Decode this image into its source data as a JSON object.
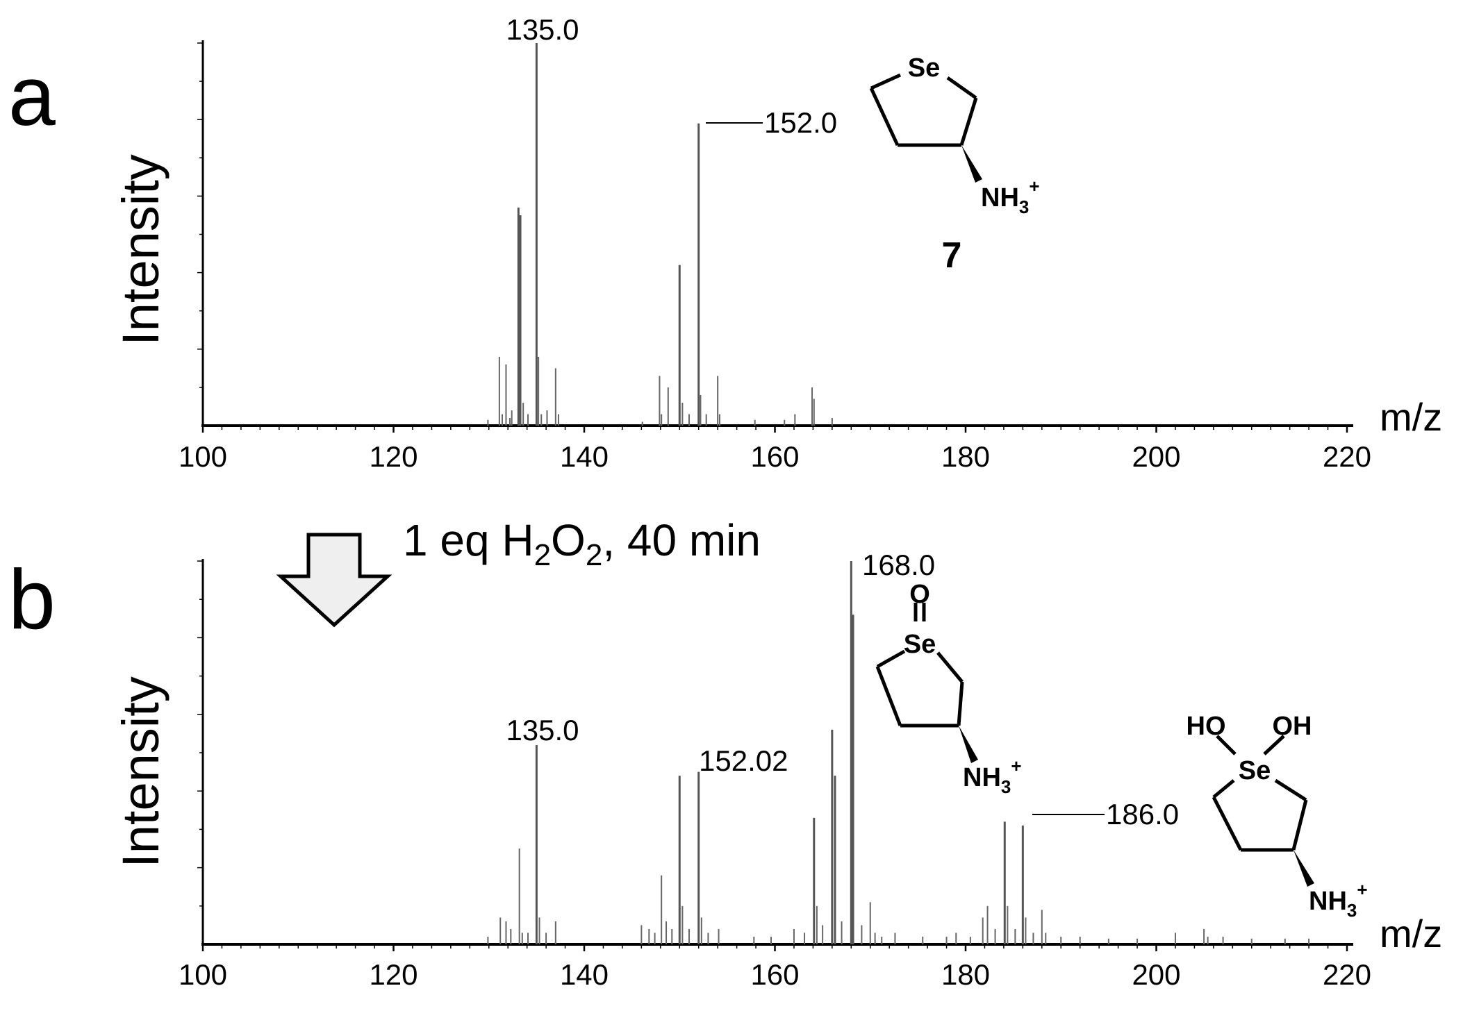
{
  "chart_data": [
    {
      "type": "bar",
      "panel_label": "a",
      "ylabel": "Intensity",
      "xlabel": "m/z",
      "xlim": [
        100,
        220
      ],
      "x_ticks": [
        "100",
        "120",
        "140",
        "160",
        "180",
        "200",
        "220"
      ],
      "ylim": [
        0,
        100
      ],
      "peaks": [
        {
          "mz": 129.9,
          "i": 1.5
        },
        {
          "mz": 131.1,
          "i": 18
        },
        {
          "mz": 131.4,
          "i": 3
        },
        {
          "mz": 131.8,
          "i": 16
        },
        {
          "mz": 132.2,
          "i": 2
        },
        {
          "mz": 132.4,
          "i": 4
        },
        {
          "mz": 133.1,
          "i": 57
        },
        {
          "mz": 133.3,
          "i": 55
        },
        {
          "mz": 133.6,
          "i": 6
        },
        {
          "mz": 134.1,
          "i": 3
        },
        {
          "mz": 135.0,
          "i": 100
        },
        {
          "mz": 135.2,
          "i": 18
        },
        {
          "mz": 135.5,
          "i": 3
        },
        {
          "mz": 136.1,
          "i": 4
        },
        {
          "mz": 137.0,
          "i": 15
        },
        {
          "mz": 137.3,
          "i": 3
        },
        {
          "mz": 146.1,
          "i": 1
        },
        {
          "mz": 147.9,
          "i": 13
        },
        {
          "mz": 148.1,
          "i": 3
        },
        {
          "mz": 148.8,
          "i": 10
        },
        {
          "mz": 150.0,
          "i": 42
        },
        {
          "mz": 150.3,
          "i": 6
        },
        {
          "mz": 151.0,
          "i": 3
        },
        {
          "mz": 152.0,
          "i": 79
        },
        {
          "mz": 152.2,
          "i": 8
        },
        {
          "mz": 152.8,
          "i": 3
        },
        {
          "mz": 154.0,
          "i": 13
        },
        {
          "mz": 154.2,
          "i": 3
        },
        {
          "mz": 157.9,
          "i": 1.5
        },
        {
          "mz": 161.0,
          "i": 1.5
        },
        {
          "mz": 162.1,
          "i": 3
        },
        {
          "mz": 163.9,
          "i": 10
        },
        {
          "mz": 164.1,
          "i": 7
        },
        {
          "mz": 166.0,
          "i": 2
        }
      ],
      "peak_labels": [
        {
          "text": "135.0",
          "mz": 135.0
        },
        {
          "text": "152.0",
          "mz": 152.0
        }
      ],
      "structure": {
        "atom_top": "Se",
        "substituent": "NH",
        "sub": "3",
        "sup": "+",
        "compound_number": "7"
      }
    },
    {
      "type": "bar",
      "panel_label": "b",
      "ylabel": "Intensity",
      "xlabel": "m/z",
      "xlim": [
        100,
        220
      ],
      "x_ticks": [
        "100",
        "120",
        "140",
        "160",
        "180",
        "200",
        "220"
      ],
      "ylim": [
        0,
        100
      ],
      "reaction": {
        "prefix": "1 eq H",
        "sub1": "2",
        "mid": "O",
        "sub2": "2",
        "suffix": ", 40 min"
      },
      "peaks": [
        {
          "mz": 129.9,
          "i": 2
        },
        {
          "mz": 131.2,
          "i": 7
        },
        {
          "mz": 131.8,
          "i": 6
        },
        {
          "mz": 132.3,
          "i": 4
        },
        {
          "mz": 133.2,
          "i": 25
        },
        {
          "mz": 133.5,
          "i": 3
        },
        {
          "mz": 134.1,
          "i": 3
        },
        {
          "mz": 135.0,
          "i": 52
        },
        {
          "mz": 135.3,
          "i": 7
        },
        {
          "mz": 136.0,
          "i": 3
        },
        {
          "mz": 137.0,
          "i": 6
        },
        {
          "mz": 146.0,
          "i": 5
        },
        {
          "mz": 146.8,
          "i": 4
        },
        {
          "mz": 147.4,
          "i": 3
        },
        {
          "mz": 148.1,
          "i": 18
        },
        {
          "mz": 148.6,
          "i": 6
        },
        {
          "mz": 149.2,
          "i": 4
        },
        {
          "mz": 150.0,
          "i": 44
        },
        {
          "mz": 150.3,
          "i": 10
        },
        {
          "mz": 151.0,
          "i": 4
        },
        {
          "mz": 152.0,
          "i": 45
        },
        {
          "mz": 152.3,
          "i": 7
        },
        {
          "mz": 153.0,
          "i": 3
        },
        {
          "mz": 154.1,
          "i": 4
        },
        {
          "mz": 157.8,
          "i": 2
        },
        {
          "mz": 159.6,
          "i": 2
        },
        {
          "mz": 162.0,
          "i": 4
        },
        {
          "mz": 163.1,
          "i": 3
        },
        {
          "mz": 164.1,
          "i": 33
        },
        {
          "mz": 164.4,
          "i": 10
        },
        {
          "mz": 165.0,
          "i": 5
        },
        {
          "mz": 166.0,
          "i": 56
        },
        {
          "mz": 166.3,
          "i": 44
        },
        {
          "mz": 167.0,
          "i": 6
        },
        {
          "mz": 168.0,
          "i": 100
        },
        {
          "mz": 168.2,
          "i": 86
        },
        {
          "mz": 169.1,
          "i": 5
        },
        {
          "mz": 170.0,
          "i": 11
        },
        {
          "mz": 170.5,
          "i": 3
        },
        {
          "mz": 171.2,
          "i": 2
        },
        {
          "mz": 172.6,
          "i": 3
        },
        {
          "mz": 175.5,
          "i": 2
        },
        {
          "mz": 178.0,
          "i": 2
        },
        {
          "mz": 179.0,
          "i": 3
        },
        {
          "mz": 180.5,
          "i": 2
        },
        {
          "mz": 181.8,
          "i": 7
        },
        {
          "mz": 182.3,
          "i": 10
        },
        {
          "mz": 183.1,
          "i": 4
        },
        {
          "mz": 184.1,
          "i": 32
        },
        {
          "mz": 184.4,
          "i": 10
        },
        {
          "mz": 185.2,
          "i": 4
        },
        {
          "mz": 186.0,
          "i": 31
        },
        {
          "mz": 186.3,
          "i": 7
        },
        {
          "mz": 187.1,
          "i": 3
        },
        {
          "mz": 188.0,
          "i": 9
        },
        {
          "mz": 188.4,
          "i": 3
        },
        {
          "mz": 190.0,
          "i": 2
        },
        {
          "mz": 192.0,
          "i": 2
        },
        {
          "mz": 195.0,
          "i": 1.5
        },
        {
          "mz": 198.0,
          "i": 1.5
        },
        {
          "mz": 202.0,
          "i": 3
        },
        {
          "mz": 205.0,
          "i": 4
        },
        {
          "mz": 205.4,
          "i": 2
        },
        {
          "mz": 207.0,
          "i": 2
        },
        {
          "mz": 210.0,
          "i": 1.5
        },
        {
          "mz": 213.5,
          "i": 1.5
        },
        {
          "mz": 216.0,
          "i": 1.5
        }
      ],
      "peak_labels": [
        {
          "text": "135.0",
          "mz": 135.0
        },
        {
          "text": "152.02",
          "mz": 152.0
        },
        {
          "text": "168.0",
          "mz": 168.0
        },
        {
          "text": "186.0",
          "mz": 186.0
        }
      ],
      "structures": [
        {
          "atom_o": "O",
          "atom_top": "Se",
          "substituent": "NH",
          "sub": "3",
          "sup": "+"
        },
        {
          "oh_left": "HO",
          "oh_right": "OH",
          "atom_top": "Se",
          "substituent": "NH",
          "sub": "3",
          "sup": "+"
        }
      ]
    }
  ]
}
